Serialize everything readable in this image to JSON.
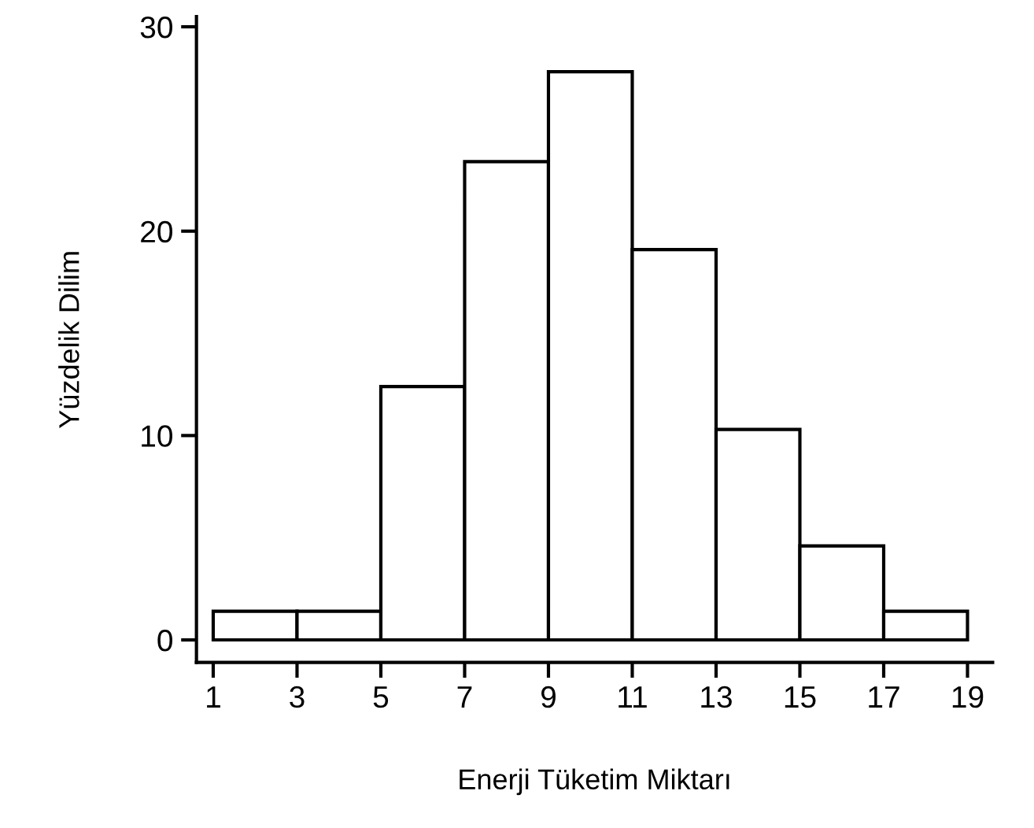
{
  "chart_data": {
    "type": "histogram",
    "xlabel": "Enerji Tüketim Miktarı",
    "ylabel": "Yüzdelik Dilim",
    "bins": [
      1,
      3,
      5,
      7,
      9,
      11,
      13,
      15,
      17,
      19
    ],
    "values": [
      1.4,
      1.4,
      12.4,
      23.4,
      27.8,
      19.1,
      10.3,
      4.6,
      1.4
    ],
    "color": "#ffffff",
    "xlim": [
      0.6,
      19.6
    ],
    "ylim": [
      -1.1,
      30.5
    ],
    "xticks": [
      1,
      3,
      5,
      7,
      9,
      11,
      13,
      15,
      17,
      19
    ],
    "yticks": [
      0,
      10,
      20,
      30
    ],
    "grid": false
  }
}
